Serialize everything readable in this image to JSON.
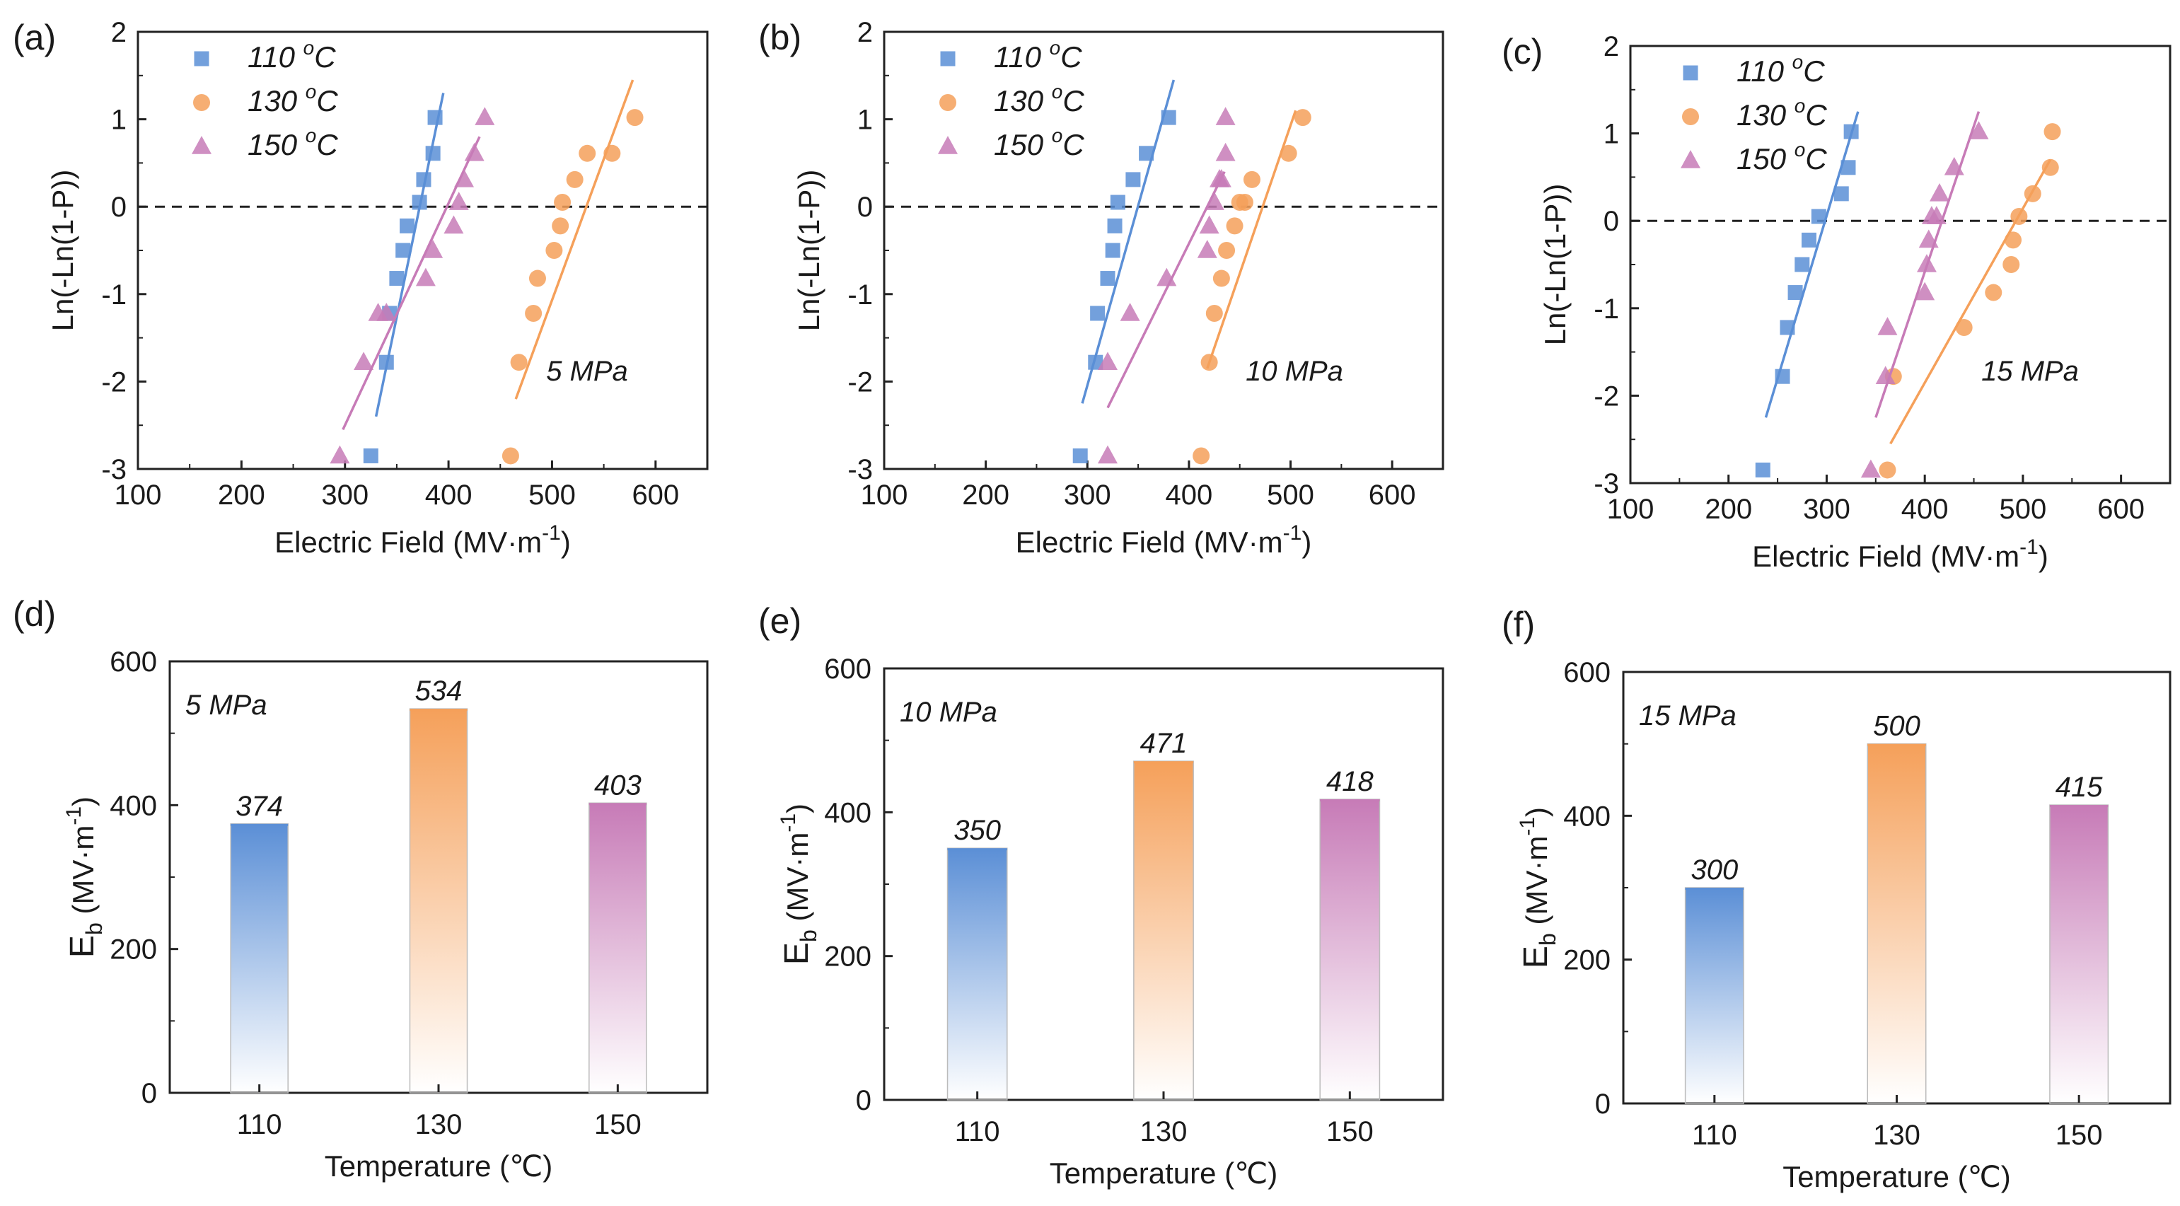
{
  "colors": {
    "c110": "#5b8fd6",
    "c130": "#f5a05a",
    "c150": "#c77bb7",
    "axis": "#222222"
  },
  "chart_data": [
    {
      "id": "a",
      "type": "scatter",
      "panel_label": "(a)",
      "condition": "5 MPa",
      "xlabel": "Electric Field",
      "xunit": "(MV·m",
      "xunit_sup": "-1",
      "xunit_close": ")",
      "ylabel": "Ln(-Ln(1-P))",
      "xlim": [
        100,
        650
      ],
      "ylim": [
        -3,
        2
      ],
      "xticks": [
        "100",
        "200",
        "300",
        "400",
        "500",
        "600"
      ],
      "yticks": [
        "-3",
        "-2",
        "-1",
        "0",
        "1",
        "2"
      ],
      "series": [
        {
          "name": "110 °C",
          "name_main": "110 ",
          "name_sup": "o",
          "name_unit": "C",
          "marker": "square",
          "color_key": "c110",
          "x": [
            325,
            340,
            343,
            350,
            356,
            360,
            372,
            376,
            385,
            387
          ],
          "y": [
            -2.85,
            -1.78,
            -1.22,
            -0.82,
            -0.5,
            -0.22,
            0.05,
            0.31,
            0.61,
            1.02
          ],
          "fit": [
            [
              330,
              -2.4
            ],
            [
              395,
              1.3
            ]
          ]
        },
        {
          "name": "130 °C",
          "name_main": "130 ",
          "name_sup": "o",
          "name_unit": "C",
          "marker": "circle",
          "color_key": "c130",
          "x": [
            460,
            468,
            482,
            486,
            502,
            508,
            510,
            522,
            534,
            558,
            580
          ],
          "y": [
            -2.85,
            -1.78,
            -1.22,
            -0.82,
            -0.5,
            -0.22,
            0.05,
            0.31,
            0.61,
            0.61,
            1.02
          ],
          "fit": [
            [
              465,
              -2.2
            ],
            [
              578,
              1.45
            ]
          ]
        },
        {
          "name": "150 °C",
          "name_main": "150 ",
          "name_sup": "o",
          "name_unit": "C",
          "marker": "triangle",
          "color_key": "c150",
          "x": [
            295,
            318,
            332,
            340,
            378,
            385,
            405,
            410,
            415,
            425,
            435
          ],
          "y": [
            -2.85,
            -1.78,
            -1.22,
            -1.22,
            -0.82,
            -0.5,
            -0.22,
            0.05,
            0.31,
            0.61,
            1.02
          ],
          "fit": [
            [
              298,
              -2.55
            ],
            [
              430,
              0.8
            ]
          ]
        }
      ]
    },
    {
      "id": "b",
      "type": "scatter",
      "panel_label": "(b)",
      "condition": "10 MPa",
      "xlabel": "Electric Field",
      "xunit": "(MV·m",
      "xunit_sup": "-1",
      "xunit_close": ")",
      "ylabel": "Ln(-Ln(1-P))",
      "xlim": [
        100,
        650
      ],
      "ylim": [
        -3,
        2
      ],
      "xticks": [
        "100",
        "200",
        "300",
        "400",
        "500",
        "600"
      ],
      "yticks": [
        "-3",
        "-2",
        "-1",
        "0",
        "1",
        "2"
      ],
      "series": [
        {
          "name": "110 °C",
          "name_main": "110 ",
          "name_sup": "o",
          "name_unit": "C",
          "marker": "square",
          "color_key": "c110",
          "x": [
            293,
            308,
            310,
            320,
            325,
            327,
            330,
            345,
            358,
            380
          ],
          "y": [
            -2.85,
            -1.78,
            -1.22,
            -0.82,
            -0.5,
            -0.22,
            0.05,
            0.31,
            0.61,
            1.02
          ],
          "fit": [
            [
              295,
              -2.25
            ],
            [
              385,
              1.45
            ]
          ]
        },
        {
          "name": "130 °C",
          "name_main": "130 ",
          "name_sup": "o",
          "name_unit": "C",
          "marker": "circle",
          "color_key": "c130",
          "x": [
            412,
            420,
            425,
            432,
            437,
            445,
            450,
            455,
            462,
            498,
            512
          ],
          "y": [
            -2.85,
            -1.78,
            -1.22,
            -0.82,
            -0.5,
            -0.22,
            0.05,
            0.05,
            0.31,
            0.61,
            1.02
          ],
          "fit": [
            [
              418,
              -1.85
            ],
            [
              505,
              1.1
            ]
          ]
        },
        {
          "name": "150 °C",
          "name_main": "150 ",
          "name_sup": "o",
          "name_unit": "C",
          "marker": "triangle",
          "color_key": "c150",
          "x": [
            320,
            320,
            342,
            378,
            418,
            420,
            425,
            430,
            432,
            436,
            436
          ],
          "y": [
            -2.85,
            -1.78,
            -1.22,
            -0.82,
            -0.5,
            -0.22,
            0.05,
            0.31,
            0.31,
            0.61,
            1.02
          ],
          "fit": [
            [
              320,
              -2.3
            ],
            [
              435,
              0.4
            ]
          ]
        }
      ]
    },
    {
      "id": "c",
      "type": "scatter",
      "panel_label": "(c)",
      "condition": "15 MPa",
      "xlabel": "Electric Field",
      "xunit": "(MV·m",
      "xunit_sup": "-1",
      "xunit_close": ")",
      "ylabel": "Ln(-Ln(1-P))",
      "xlim": [
        100,
        650
      ],
      "ylim": [
        -3,
        2
      ],
      "xticks": [
        "100",
        "200",
        "300",
        "400",
        "500",
        "600"
      ],
      "yticks": [
        "-3",
        "-2",
        "-1",
        "0",
        "1",
        "2"
      ],
      "series": [
        {
          "name": "110 °C",
          "name_main": "110 ",
          "name_sup": "o",
          "name_unit": "C",
          "marker": "square",
          "color_key": "c110",
          "x": [
            235,
            255,
            260,
            268,
            275,
            282,
            292,
            315,
            322,
            325
          ],
          "y": [
            -2.85,
            -1.78,
            -1.22,
            -0.82,
            -0.5,
            -0.22,
            0.05,
            0.31,
            0.61,
            1.02
          ],
          "fit": [
            [
              238,
              -2.25
            ],
            [
              332,
              1.25
            ]
          ]
        },
        {
          "name": "130 °C",
          "name_main": "130 ",
          "name_sup": "o",
          "name_unit": "C",
          "marker": "circle",
          "color_key": "c130",
          "x": [
            362,
            368,
            440,
            470,
            488,
            490,
            496,
            510,
            528,
            530
          ],
          "y": [
            -2.85,
            -1.78,
            -1.22,
            -0.82,
            -0.5,
            -0.22,
            0.05,
            0.31,
            0.61,
            1.02
          ],
          "fit": [
            [
              365,
              -2.55
            ],
            [
              528,
              0.7
            ]
          ]
        },
        {
          "name": "150 °C",
          "name_main": "150 ",
          "name_sup": "o",
          "name_unit": "C",
          "marker": "triangle",
          "color_key": "c150",
          "x": [
            345,
            360,
            362,
            400,
            402,
            404,
            407,
            412,
            415,
            430,
            455
          ],
          "y": [
            -2.85,
            -1.78,
            -1.22,
            -0.82,
            -0.5,
            -0.22,
            0.05,
            0.05,
            0.31,
            0.61,
            1.02
          ],
          "fit": [
            [
              350,
              -2.25
            ],
            [
              455,
              1.25
            ]
          ]
        }
      ]
    },
    {
      "id": "d",
      "type": "bar",
      "panel_label": "(d)",
      "condition": "5 MPa",
      "xlabel": "Temperature (℃)",
      "ylabel_main": "E",
      "ylabel_sub": "b",
      "ylabel_unit": " (MV·m",
      "ylabel_sup": "-1",
      "ylabel_close": ")",
      "categories": [
        "110",
        "130",
        "150"
      ],
      "values": [
        374,
        534,
        403
      ],
      "value_labels": [
        "374",
        "534",
        "403"
      ],
      "ylim": [
        0,
        600
      ],
      "yticks": [
        "0",
        "200",
        "400",
        "600"
      ]
    },
    {
      "id": "e",
      "type": "bar",
      "panel_label": "(e)",
      "condition": "10 MPa",
      "xlabel": "Temperature (℃)",
      "ylabel_main": "E",
      "ylabel_sub": "b",
      "ylabel_unit": " (MV·m",
      "ylabel_sup": "-1",
      "ylabel_close": ")",
      "categories": [
        "110",
        "130",
        "150"
      ],
      "values": [
        350,
        471,
        418
      ],
      "value_labels": [
        "350",
        "471",
        "418"
      ],
      "ylim": [
        0,
        600
      ],
      "yticks": [
        "0",
        "200",
        "400",
        "600"
      ]
    },
    {
      "id": "f",
      "type": "bar",
      "panel_label": "(f)",
      "condition": "15 MPa",
      "xlabel": "Temperature (℃)",
      "ylabel_main": "E",
      "ylabel_sub": "b",
      "ylabel_unit": " (MV·m",
      "ylabel_sup": "-1",
      "ylabel_close": ")",
      "categories": [
        "110",
        "130",
        "150"
      ],
      "values": [
        300,
        500,
        415
      ],
      "value_labels": [
        "300",
        "500",
        "415"
      ],
      "ylim": [
        0,
        600
      ],
      "yticks": [
        "0",
        "200",
        "400",
        "600"
      ]
    }
  ]
}
